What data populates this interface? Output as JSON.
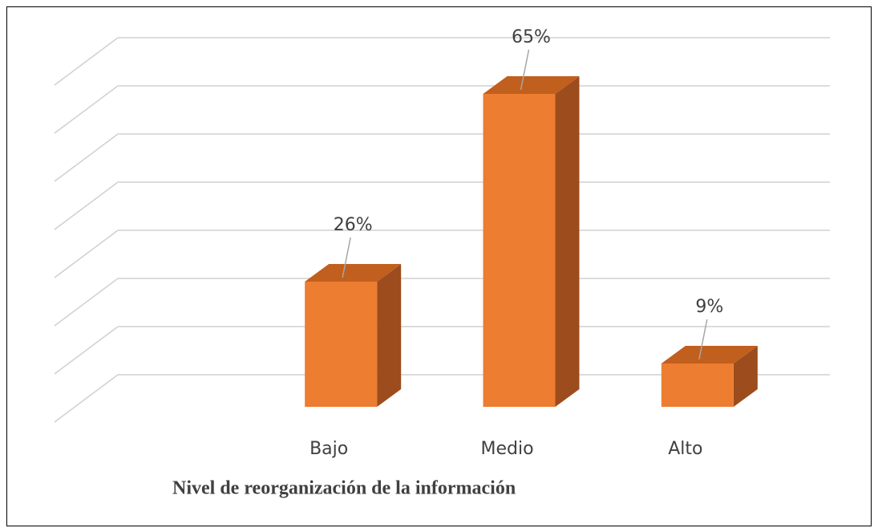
{
  "chart_data": {
    "type": "bar",
    "title": "Nivel de reorganización de la información",
    "categories": [
      "Bajo",
      "Medio",
      "Alto"
    ],
    "values": [
      26,
      65,
      9
    ],
    "value_labels": [
      "26%",
      "65%",
      "9%"
    ],
    "color": "#ed7d31",
    "ylim": [
      0,
      70
    ],
    "yticks": [
      0,
      10,
      20,
      30,
      40,
      50,
      60,
      70
    ],
    "grid": true
  }
}
